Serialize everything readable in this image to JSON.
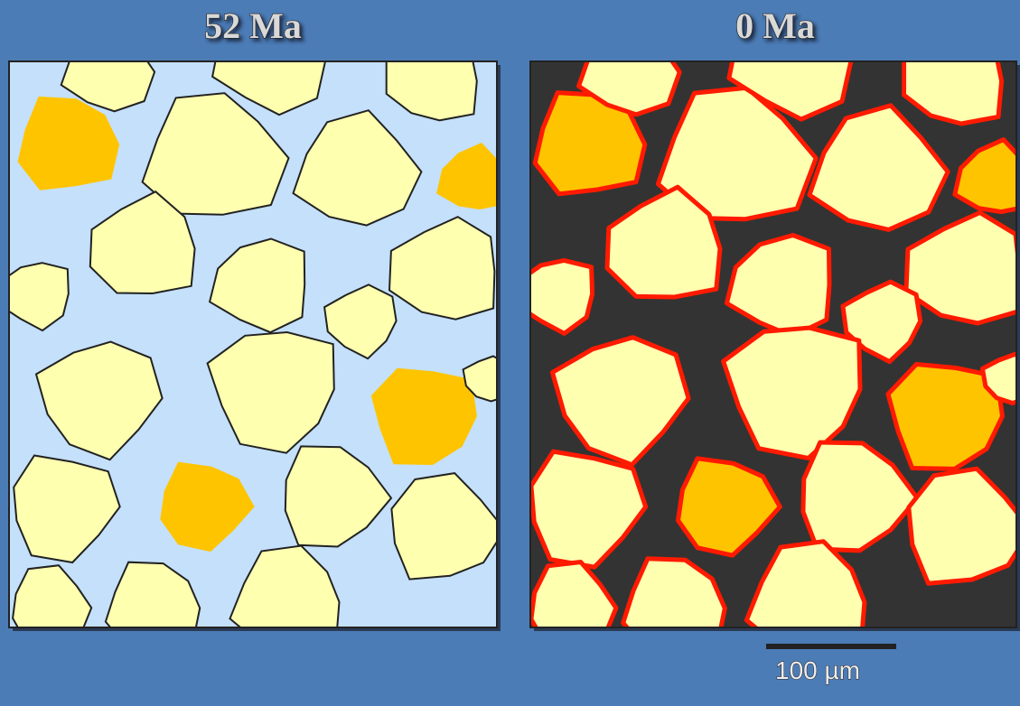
{
  "panels": [
    {
      "label": "52 Ma"
    },
    {
      "label": "0 Ma"
    }
  ],
  "scale_bar": {
    "label": "100 µm"
  }
}
